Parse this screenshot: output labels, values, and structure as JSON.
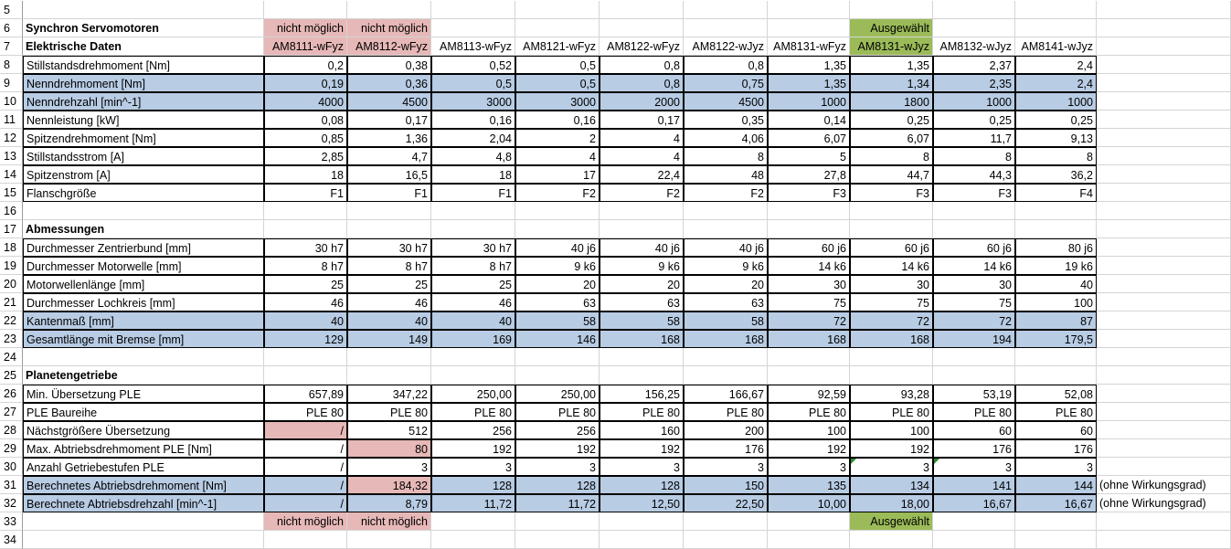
{
  "sheet": {
    "row_numbers": [
      "5",
      "6",
      "7",
      "8",
      "9",
      "10",
      "11",
      "12",
      "13",
      "14",
      "15",
      "16",
      "17",
      "18",
      "19",
      "20",
      "21",
      "22",
      "23",
      "24",
      "25",
      "26",
      "27",
      "28",
      "29",
      "30",
      "31",
      "32",
      "33",
      "34"
    ],
    "title": "Synchron Servomotoren",
    "status_top": [
      "nicht möglich",
      "nicht möglich",
      "",
      "",
      "",
      "",
      "",
      "Ausgewählt",
      "",
      ""
    ],
    "status_bottom": [
      "nicht möglich",
      "nicht möglich",
      "",
      "",
      "",
      "",
      "",
      "Ausgewählt",
      "",
      ""
    ],
    "section_electrical": "Elektrische Daten",
    "models": [
      "AM8111-wFyz",
      "AM8112-wFyz",
      "AM8113-wFyz",
      "AM8121-wFyz",
      "AM8122-wFyz",
      "AM8122-wJyz",
      "AM8131-wFyz",
      "AM8131-wJyz",
      "AM8132-wJyz",
      "AM8141-wJyz"
    ],
    "electrical_rows": [
      {
        "label": "Stillstandsdrehmoment [Nm]",
        "values": [
          "0,2",
          "0,38",
          "0,52",
          "0,5",
          "0,8",
          "0,8",
          "1,35",
          "1,35",
          "2,37",
          "2,4"
        ]
      },
      {
        "label": "Nenndrehmoment [Nm]",
        "values": [
          "0,19",
          "0,36",
          "0,5",
          "0,5",
          "0,8",
          "0,75",
          "1,35",
          "1,34",
          "2,35",
          "2,4"
        ]
      },
      {
        "label": "Nenndrehzahl [min^-1]",
        "values": [
          "4000",
          "4500",
          "3000",
          "3000",
          "2000",
          "4500",
          "1000",
          "1800",
          "1000",
          "1000"
        ]
      },
      {
        "label": "Nennleistung [kW]",
        "values": [
          "0,08",
          "0,17",
          "0,16",
          "0,16",
          "0,17",
          "0,35",
          "0,14",
          "0,25",
          "0,25",
          "0,25"
        ]
      },
      {
        "label": "Spitzendrehmoment [Nm]",
        "values": [
          "0,85",
          "1,36",
          "2,04",
          "2",
          "4",
          "4,06",
          "6,07",
          "6,07",
          "11,7",
          "9,13"
        ]
      },
      {
        "label": "Stillstandsstrom [A]",
        "values": [
          "2,85",
          "4,7",
          "4,8",
          "4",
          "4",
          "8",
          "5",
          "8",
          "8",
          "8"
        ]
      },
      {
        "label": "Spitzenstrom [A]",
        "values": [
          "18",
          "16,5",
          "18",
          "17",
          "22,4",
          "48",
          "27,8",
          "44,7",
          "44,3",
          "36,2"
        ]
      },
      {
        "label": "Flanschgröße",
        "values": [
          "F1",
          "F1",
          "F1",
          "F2",
          "F2",
          "F2",
          "F3",
          "F3",
          "F3",
          "F4"
        ]
      }
    ],
    "section_dimensions": "Abmessungen",
    "dimension_rows": [
      {
        "label": "Durchmesser Zentrierbund [mm]",
        "values": [
          "30 h7",
          "30 h7",
          "30 h7",
          "40 j6",
          "40 j6",
          "40 j6",
          "60 j6",
          "60 j6",
          "60 j6",
          "80 j6"
        ]
      },
      {
        "label": "Durchmesser Motorwelle [mm]",
        "values": [
          "8 h7",
          "8 h7",
          "8 h7",
          "9 k6",
          "9 k6",
          "9 k6",
          "14 k6",
          "14 k6",
          "14 k6",
          "19 k6"
        ]
      },
      {
        "label": "Motorwellenlänge [mm]",
        "values": [
          "25",
          "25",
          "25",
          "20",
          "20",
          "20",
          "30",
          "30",
          "30",
          "40"
        ]
      },
      {
        "label": "Durchmesser Lochkreis [mm]",
        "values": [
          "46",
          "46",
          "46",
          "63",
          "63",
          "63",
          "75",
          "75",
          "75",
          "100"
        ]
      },
      {
        "label": "Kantenmaß [mm]",
        "values": [
          "40",
          "40",
          "40",
          "58",
          "58",
          "58",
          "72",
          "72",
          "72",
          "87"
        ]
      },
      {
        "label": "Gesamtlänge mit Bremse [mm]",
        "values": [
          "129",
          "149",
          "169",
          "146",
          "168",
          "168",
          "168",
          "168",
          "194",
          "179,5"
        ]
      }
    ],
    "section_gearbox": "Planetengetriebe",
    "gearbox_rows": [
      {
        "label": "Min. Übersetzung PLE",
        "values": [
          "657,89",
          "347,22",
          "250,00",
          "250,00",
          "156,25",
          "166,67",
          "92,59",
          "93,28",
          "53,19",
          "52,08"
        ],
        "note": ""
      },
      {
        "label": "PLE Baureihe",
        "values": [
          "PLE 80",
          "PLE 80",
          "PLE 80",
          "PLE 80",
          "PLE 80",
          "PLE 80",
          "PLE 80",
          "PLE 80",
          "PLE 80",
          "PLE 80"
        ],
        "note": ""
      },
      {
        "label": "Nächstgrößere Übersetzung",
        "values": [
          "/",
          "512",
          "256",
          "256",
          "160",
          "200",
          "100",
          "100",
          "60",
          "60"
        ],
        "note": ""
      },
      {
        "label": "Max. Abtriebsdrehmoment PLE [Nm]",
        "values": [
          "/",
          "80",
          "192",
          "192",
          "192",
          "176",
          "192",
          "192",
          "176",
          "176"
        ],
        "note": ""
      },
      {
        "label": "Anzahl Getriebestufen PLE",
        "values": [
          "/",
          "3",
          "3",
          "3",
          "3",
          "3",
          "3",
          "3",
          "3",
          "3"
        ],
        "note": ""
      },
      {
        "label": "Berechnetes Abtriebsdrehmoment [Nm]",
        "values": [
          "/",
          "184,32",
          "128",
          "128",
          "128",
          "150",
          "135",
          "134",
          "141",
          "144"
        ],
        "note": "(ohne Wirkungsgrad)"
      },
      {
        "label": "Berechnete Abtriebsdrehzahl [min^-1]",
        "values": [
          "/",
          "8,79",
          "11,72",
          "11,72",
          "12,50",
          "22,50",
          "10,00",
          "18,00",
          "16,67",
          "16,67"
        ],
        "note": "(ohne Wirkungsgrad)"
      }
    ]
  },
  "colors": {
    "blue_fill": "#b8cce4",
    "pink_fill": "#e6b8b7",
    "green_fill": "#9bbb59",
    "comment_marker": "#2e8b2e"
  }
}
